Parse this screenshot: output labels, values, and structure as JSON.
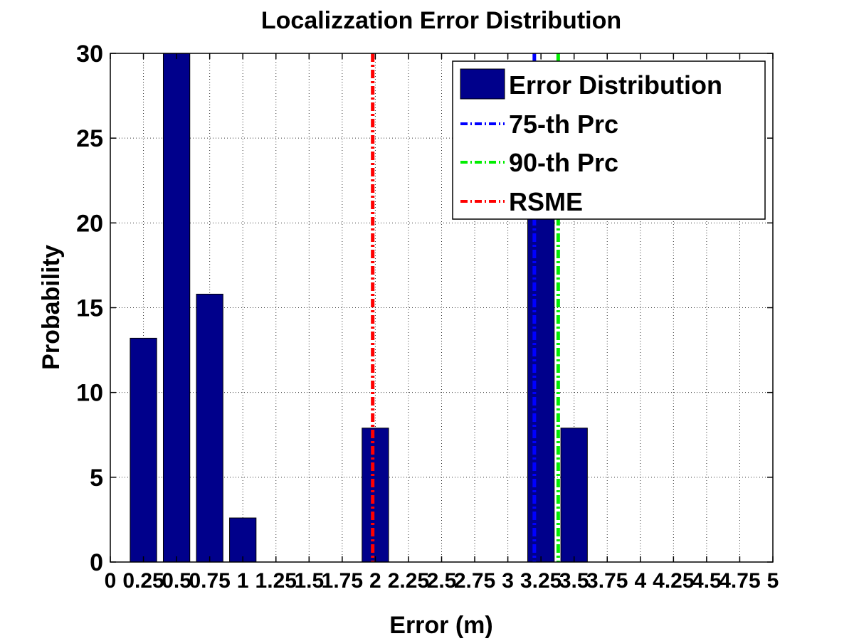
{
  "chart_data": {
    "type": "bar",
    "title": "Localizzation Error Distribution",
    "xlabel": "Error (m)",
    "ylabel": "Probability",
    "xlim": [
      0,
      5
    ],
    "ylim": [
      0,
      30
    ],
    "x_ticks": [
      0,
      0.25,
      0.5,
      0.75,
      1,
      1.25,
      1.5,
      1.75,
      2,
      2.25,
      2.5,
      2.75,
      3,
      3.25,
      3.5,
      3.75,
      4,
      4.25,
      4.5,
      4.75,
      5
    ],
    "x_tick_labels": [
      "0",
      "0.25",
      "0.5",
      "0.75",
      "1",
      "1.25",
      "1.5",
      "1.75",
      "2",
      "2.25",
      "2.5",
      "2.75",
      "3",
      "3.25",
      "3.5",
      "3.75",
      "4",
      "4.25",
      "4.5",
      "4.75",
      "5"
    ],
    "y_ticks": [
      0,
      5,
      10,
      15,
      20,
      25,
      30
    ],
    "y_tick_labels": [
      "0",
      "5",
      "10",
      "15",
      "20",
      "25",
      "30"
    ],
    "grid": true,
    "legend_position": "top-right",
    "bar_width": 0.2,
    "series": [
      {
        "name": "Error Distribution",
        "color": "#00008b",
        "x": [
          0.25,
          0.5,
          0.75,
          1.0,
          2.0,
          3.25,
          3.5
        ],
        "values": [
          13.2,
          30,
          15.8,
          2.6,
          7.9,
          21.0,
          7.9
        ]
      }
    ],
    "reference_lines": [
      {
        "name": "75-th Prc",
        "x": 3.2,
        "color": "#0000ff"
      },
      {
        "name": "90-th Prc",
        "x": 3.38,
        "color": "#00ee00"
      },
      {
        "name": "RSME",
        "x": 1.98,
        "color": "#ff0000"
      }
    ]
  }
}
